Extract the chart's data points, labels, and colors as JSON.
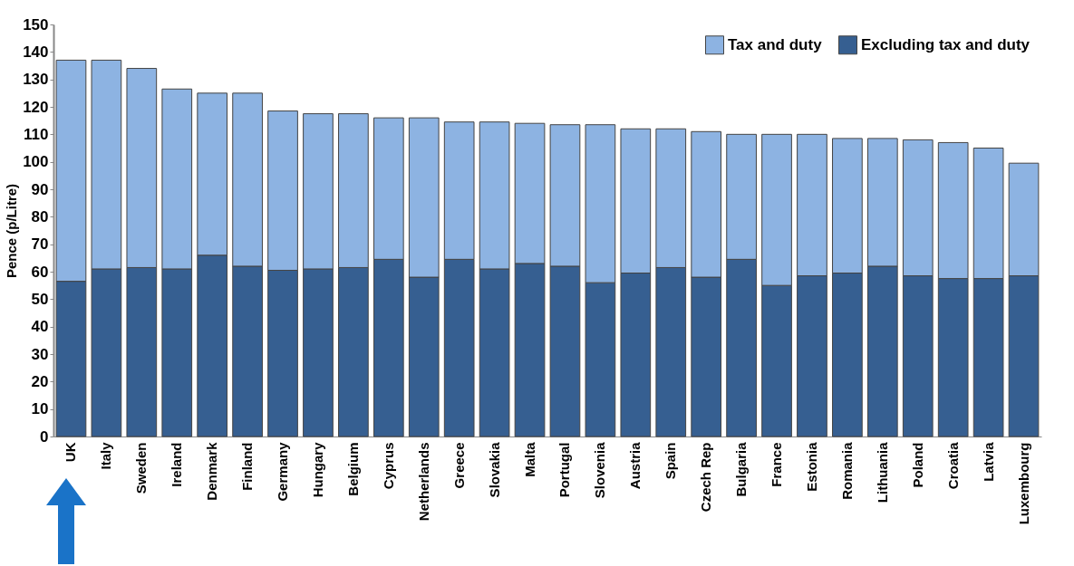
{
  "chart_data": {
    "type": "bar",
    "stacked": true,
    "ylabel": "Pence (p/Litre)",
    "categories": [
      "UK",
      "Italy",
      "Sweden",
      "Ireland",
      "Denmark",
      "Finland",
      "Germany",
      "Hungary",
      "Belgium",
      "Cyprus",
      "Netherlands",
      "Greece",
      "Slovakia",
      "Malta",
      "Portugal",
      "Slovenia",
      "Austria",
      "Spain",
      "Czech Rep",
      "Bulgaria",
      "France",
      "Estonia",
      "Romania",
      "Lithuania",
      "Poland",
      "Croatia",
      "Latvia",
      "Luxembourg"
    ],
    "series": [
      {
        "name": "Excluding tax and duty",
        "color": "#365f91",
        "values": [
          56.5,
          61,
          61.5,
          61,
          66,
          62,
          60.5,
          61,
          61.5,
          64.5,
          58,
          64.5,
          61,
          63,
          62,
          56,
          59.5,
          61.5,
          58,
          64.5,
          55,
          58.5,
          59.5,
          62,
          58.5,
          57.5,
          57.5,
          58.5
        ]
      },
      {
        "name": "Tax and duty",
        "color": "#8db3e2",
        "values": [
          80.5,
          76,
          72.5,
          65.5,
          59,
          63,
          58,
          56.5,
          56,
          51.5,
          58,
          50,
          53.5,
          51,
          51.5,
          57.5,
          52.5,
          50.5,
          53,
          45.5,
          55,
          51.5,
          49,
          46.5,
          49.5,
          49.5,
          47.5,
          41
        ]
      }
    ],
    "ylim": [
      0,
      150
    ],
    "yticks": [
      0,
      10,
      20,
      30,
      40,
      50,
      60,
      70,
      80,
      90,
      100,
      110,
      120,
      130,
      140,
      150
    ],
    "grid": false,
    "legend": "top right"
  }
}
